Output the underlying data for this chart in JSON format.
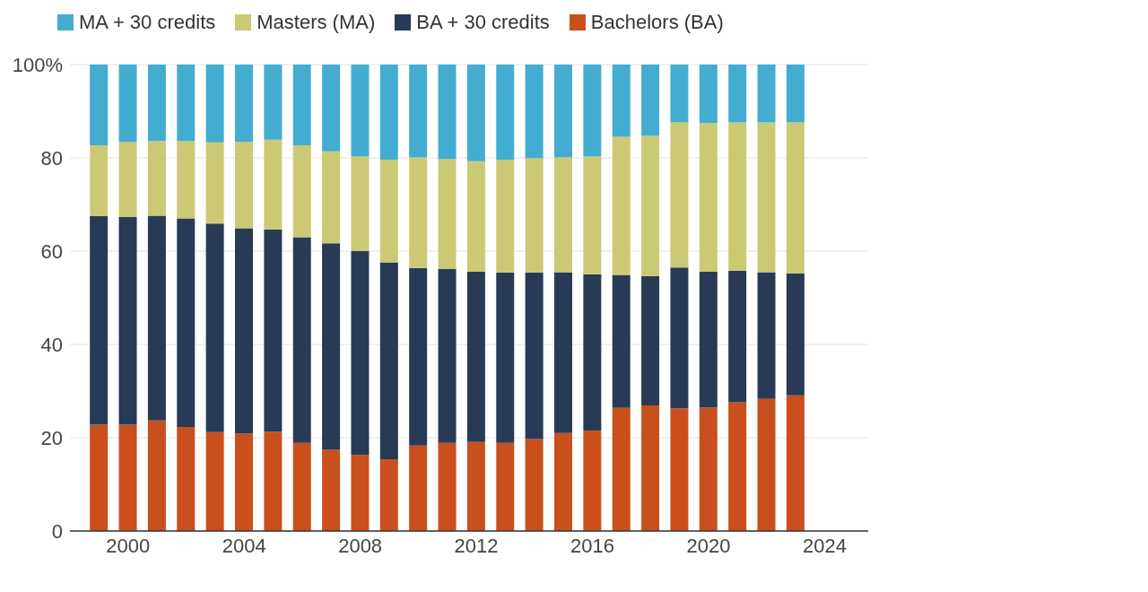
{
  "chart_data": {
    "type": "bar",
    "stacked": true,
    "legend": "top left",
    "grid": "y",
    "x": [
      1999,
      2000,
      2001,
      2002,
      2003,
      2004,
      2005,
      2006,
      2007,
      2008,
      2009,
      2010,
      2011,
      2012,
      2013,
      2014,
      2015,
      2016,
      2017,
      2018,
      2019,
      2020,
      2021,
      2022,
      2023
    ],
    "xlim": [
      1998,
      2025.5
    ],
    "xticks": [
      2000,
      2004,
      2008,
      2012,
      2016,
      2020,
      2024
    ],
    "ylim": [
      0,
      100
    ],
    "yticks": [
      0,
      20,
      40,
      60,
      80,
      {
        "value": 100,
        "label": "100%"
      }
    ],
    "series": [
      {
        "name": "Bachelors (BA)",
        "color": "#c94f1c",
        "values": [
          22.8,
          22.8,
          23.7,
          22.3,
          21.2,
          20.9,
          21.3,
          18.9,
          17.4,
          16.3,
          15.4,
          18.3,
          18.9,
          19.1,
          18.9,
          19.7,
          21.0,
          21.5,
          26.4,
          26.9,
          26.3,
          26.5,
          27.6,
          28.3,
          29.1
        ]
      },
      {
        "name": "BA + 30 credits",
        "color": "#283a55",
        "values": [
          44.7,
          44.5,
          43.9,
          44.7,
          44.7,
          44.0,
          43.3,
          44.1,
          44.3,
          43.7,
          42.2,
          38.1,
          37.3,
          36.5,
          36.5,
          35.7,
          34.5,
          33.5,
          28.5,
          27.7,
          30.2,
          29.1,
          28.2,
          27.2,
          26.1
        ]
      },
      {
        "name": "Masters (MA)",
        "color": "#ccc974",
        "values": [
          15.2,
          16.1,
          16.0,
          16.6,
          17.4,
          18.5,
          19.3,
          19.7,
          19.7,
          20.3,
          22.0,
          23.7,
          23.5,
          23.7,
          24.2,
          24.5,
          24.6,
          25.3,
          29.6,
          30.1,
          31.1,
          31.9,
          31.8,
          32.1,
          32.4
        ]
      },
      {
        "name": "MA + 30 credits",
        "color": "#43add1",
        "values": [
          17.3,
          16.6,
          16.4,
          16.4,
          16.7,
          16.6,
          16.1,
          17.3,
          18.6,
          19.7,
          20.4,
          19.9,
          20.3,
          20.7,
          20.4,
          20.1,
          19.9,
          19.7,
          15.5,
          15.3,
          12.4,
          12.5,
          12.4,
          12.4,
          12.4
        ]
      }
    ]
  }
}
